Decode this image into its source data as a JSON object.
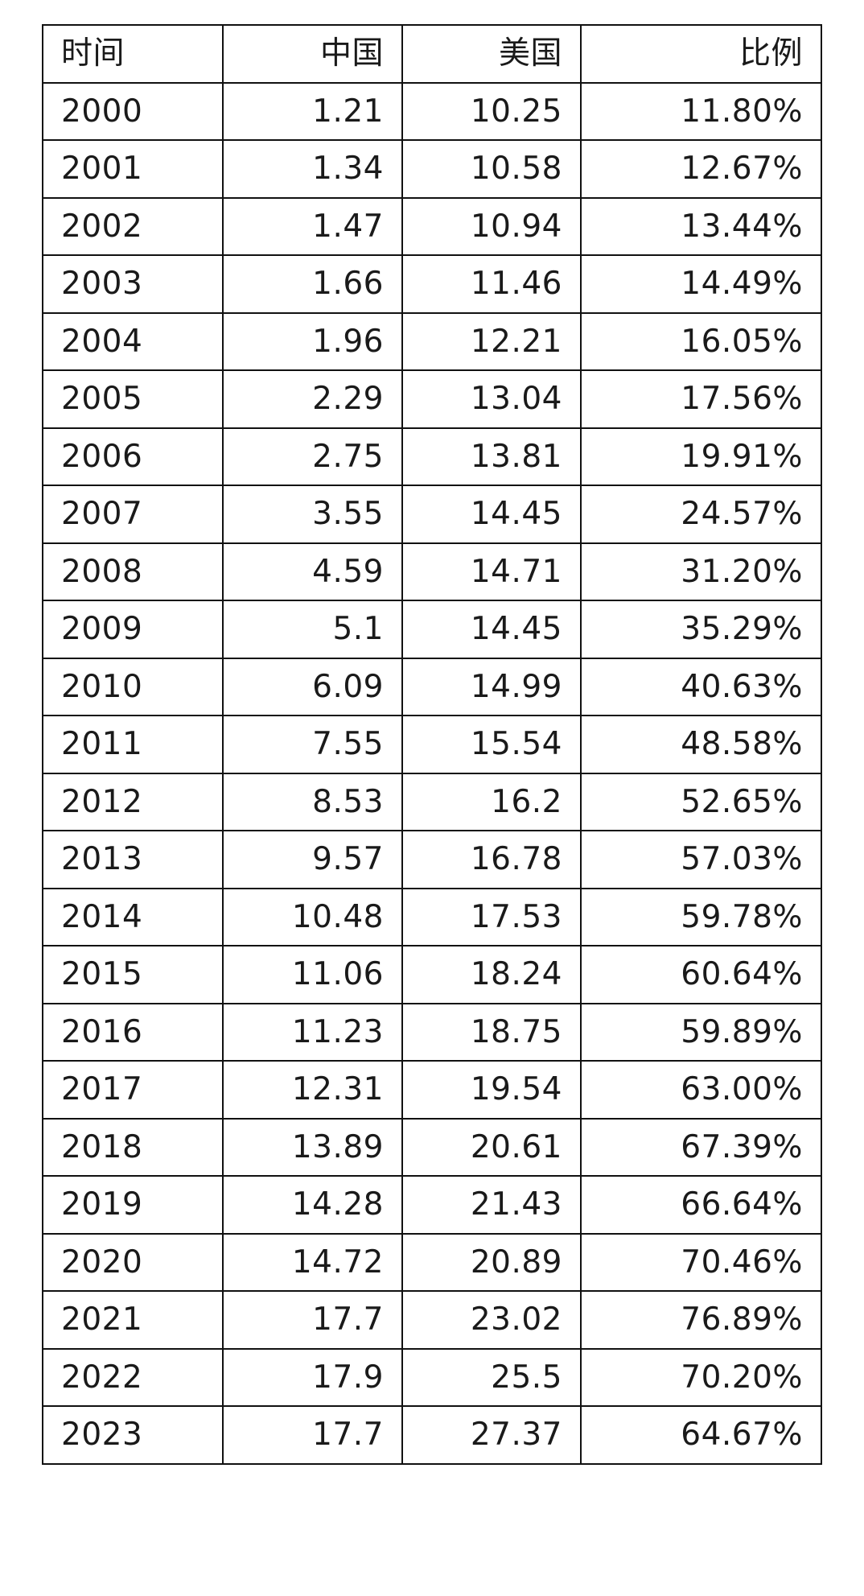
{
  "table": {
    "headers": [
      "时间",
      "中国",
      "美国",
      "比例"
    ],
    "rows": [
      [
        "2000",
        "1.21",
        "10.25",
        "11.80%"
      ],
      [
        "2001",
        "1.34",
        "10.58",
        "12.67%"
      ],
      [
        "2002",
        "1.47",
        "10.94",
        "13.44%"
      ],
      [
        "2003",
        "1.66",
        "11.46",
        "14.49%"
      ],
      [
        "2004",
        "1.96",
        "12.21",
        "16.05%"
      ],
      [
        "2005",
        "2.29",
        "13.04",
        "17.56%"
      ],
      [
        "2006",
        "2.75",
        "13.81",
        "19.91%"
      ],
      [
        "2007",
        "3.55",
        "14.45",
        "24.57%"
      ],
      [
        "2008",
        "4.59",
        "14.71",
        "31.20%"
      ],
      [
        "2009",
        "5.1",
        "14.45",
        "35.29%"
      ],
      [
        "2010",
        "6.09",
        "14.99",
        "40.63%"
      ],
      [
        "2011",
        "7.55",
        "15.54",
        "48.58%"
      ],
      [
        "2012",
        "8.53",
        "16.2",
        "52.65%"
      ],
      [
        "2013",
        "9.57",
        "16.78",
        "57.03%"
      ],
      [
        "2014",
        "10.48",
        "17.53",
        "59.78%"
      ],
      [
        "2015",
        "11.06",
        "18.24",
        "60.64%"
      ],
      [
        "2016",
        "11.23",
        "18.75",
        "59.89%"
      ],
      [
        "2017",
        "12.31",
        "19.54",
        "63.00%"
      ],
      [
        "2018",
        "13.89",
        "20.61",
        "67.39%"
      ],
      [
        "2019",
        "14.28",
        "21.43",
        "66.64%"
      ],
      [
        "2020",
        "14.72",
        "20.89",
        "70.46%"
      ],
      [
        "2021",
        "17.7",
        "23.02",
        "76.89%"
      ],
      [
        "2022",
        "17.9",
        "25.5",
        "70.20%"
      ],
      [
        "2023",
        "17.7",
        "27.37",
        "64.67%"
      ]
    ]
  },
  "colors": {
    "border": "#111111",
    "text": "#1a1a1a",
    "background": "#ffffff"
  }
}
